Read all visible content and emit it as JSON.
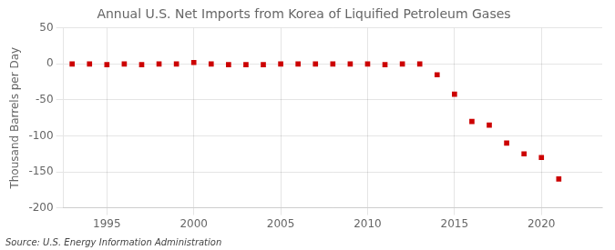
{
  "chart_data": {
    "type": "scatter",
    "title": "Annual U.S. Net Imports from Korea of Liquified Petroleum Gases",
    "ylabel": "Thousand Barrels per Day",
    "annotations": [
      "Source: U.S. Energy Information Administration"
    ],
    "x": [
      1993,
      1994,
      1995,
      1996,
      1997,
      1998,
      1999,
      2000,
      2001,
      2002,
      2003,
      2004,
      2005,
      2006,
      2007,
      2008,
      2009,
      2010,
      2011,
      2012,
      2013,
      2014,
      2015,
      2016,
      2017,
      2018,
      2019,
      2020,
      2021
    ],
    "values": [
      0,
      0,
      -1,
      0,
      -1,
      0,
      0,
      2,
      0,
      -1,
      -1,
      -1,
      0,
      0,
      0,
      0,
      0,
      0,
      -1,
      0,
      0,
      -15,
      -42,
      -80,
      -85,
      -110,
      -125,
      -130,
      -160
    ],
    "color": "#cc0000",
    "marker": "square",
    "xlim": [
      1992.5,
      2023.5
    ],
    "xticks": [
      1995,
      2000,
      2005,
      2010,
      2015,
      2020
    ],
    "ylim": [
      -200,
      50
    ],
    "yticks": [
      -200,
      -150,
      -100,
      -50,
      0,
      50
    ],
    "grid": true
  }
}
